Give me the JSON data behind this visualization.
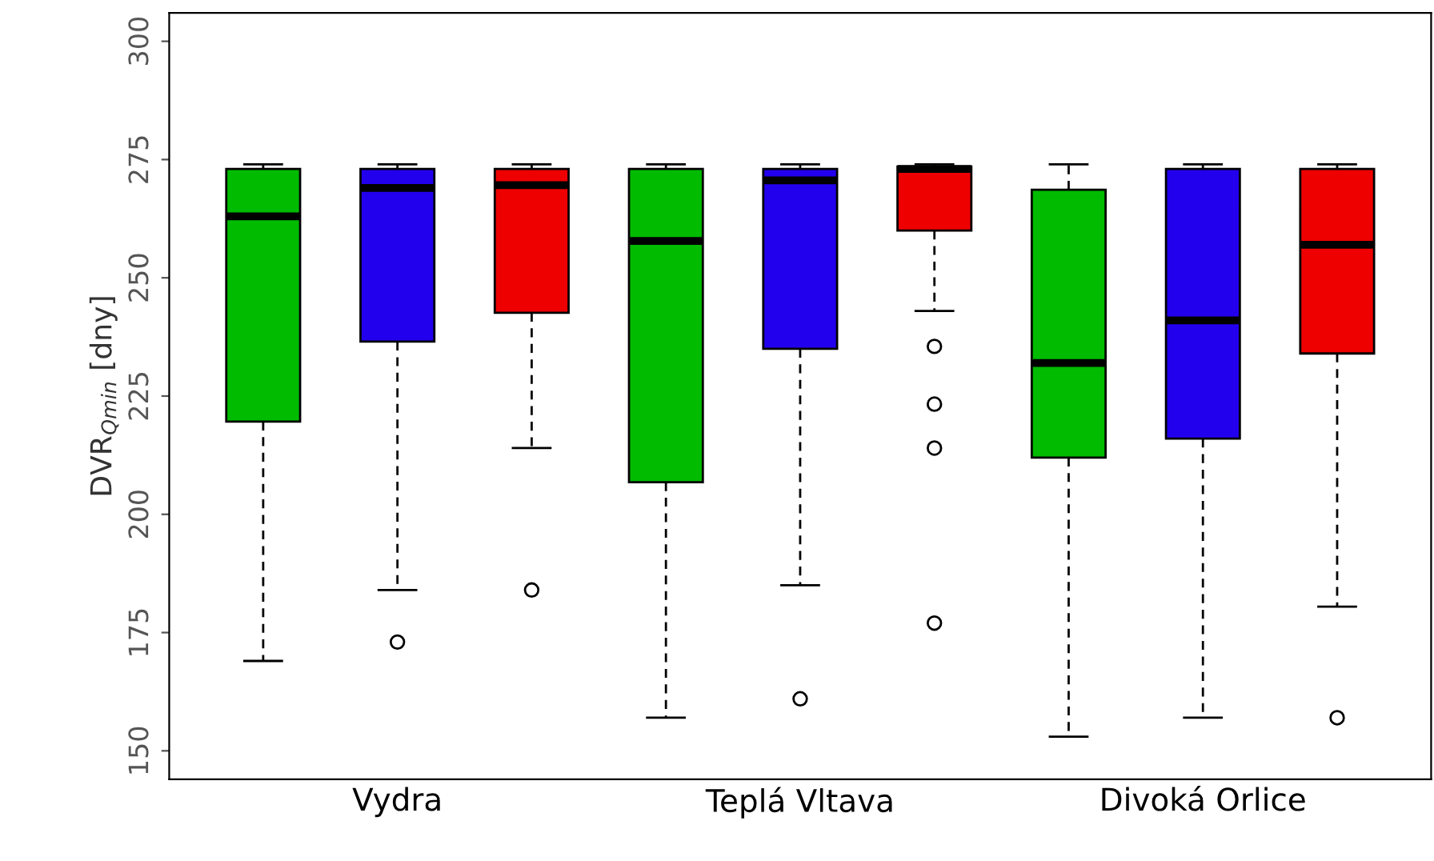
{
  "chart_data": {
    "type": "box",
    "ylabel": "DVR$_{Qmin}$ [dny]",
    "categories": [
      null,
      "Vydra",
      null,
      null,
      "Teplá Vltava",
      null,
      null,
      "Divoká Orlice",
      null
    ],
    "colors": [
      "#00bb00",
      "#2200ee",
      "#ee0000",
      "#00bb00",
      "#2200ee",
      "#ee0000",
      "#00bb00",
      "#2200ee",
      "#ee0000"
    ],
    "boxes": [
      {
        "low": 169,
        "q1": 219.6,
        "median": 263,
        "q3": 273,
        "high": 274
      },
      {
        "low": 184,
        "q1": 236.5,
        "median": 269,
        "q3": 273,
        "high": 274,
        "outliers": [
          173
        ]
      },
      {
        "low": 214,
        "q1": 242.6,
        "median": 269.6,
        "q3": 273,
        "high": 274,
        "outliers": [
          184
        ]
      },
      {
        "low": 157,
        "q1": 206.8,
        "median": 257.8,
        "q3": 273,
        "high": 274
      },
      {
        "low": 185,
        "q1": 235,
        "median": 270.6,
        "q3": 273,
        "high": 274,
        "outliers": [
          161
        ]
      },
      {
        "low": 243,
        "q1": 260,
        "median": 273,
        "q3": 273.5,
        "high": 274,
        "outliers": [
          235.5,
          223.3,
          214,
          177
        ]
      },
      {
        "low": 153,
        "q1": 212,
        "median": 232,
        "q3": 268.6,
        "high": 274
      },
      {
        "low": 157,
        "q1": 216,
        "median": 241,
        "q3": 273,
        "high": 274
      },
      {
        "low": 180.5,
        "q1": 234,
        "median": 257,
        "q3": 273,
        "high": 274,
        "outliers": [
          157
        ]
      }
    ],
    "ylim": [
      144,
      306
    ],
    "yticks": [
      150,
      175,
      200,
      225,
      250,
      275,
      300
    ],
    "grid": false,
    "marker": "circle"
  }
}
